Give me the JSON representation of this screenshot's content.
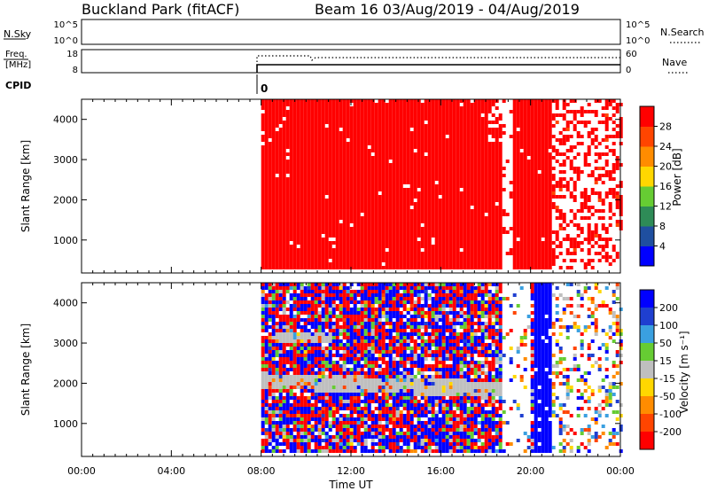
{
  "header": {
    "station": "Buckland Park (fitACF)",
    "beam_info": "Beam 16 03/Aug/2019 - 04/Aug/2019"
  },
  "noise_panel": {
    "left_label": "N.Sky",
    "left_ticks": [
      "10^5",
      "10^0"
    ],
    "right_ticks": [
      "10^5",
      "10^0"
    ],
    "right_label": "N.Search"
  },
  "freq_panel": {
    "left_label_top": "Freq.",
    "left_label_bottom": "[MHz]",
    "left_ticks": [
      "18",
      "8"
    ],
    "right_ticks": [
      "60",
      "0"
    ],
    "right_label": "Nave"
  },
  "cpid": {
    "label": "CPID",
    "value": "0"
  },
  "colors": {
    "power_red": "#ff0000",
    "gs_grey": "#bfbfbf",
    "vel_blue": "#0000ff"
  },
  "chart_data": [
    {
      "type": "heatmap",
      "name": "power",
      "ylabel": "Slant Range [km]",
      "xlabel": "Time UT",
      "x_ticks": [
        "00:00",
        "04:00",
        "08:00",
        "12:00",
        "16:00",
        "20:00",
        "00:00"
      ],
      "x_range_hours": [
        0,
        24
      ],
      "y_ticks": [
        1000,
        2000,
        3000,
        4000
      ],
      "y_range_km": [
        180,
        4500
      ],
      "data_start_hour": 8.0,
      "data_gap_hours": [
        [
          18.6,
          20.0
        ]
      ],
      "colorbar": {
        "label": "Power [dB]",
        "ticks": [
          "4",
          "8",
          "12",
          "16",
          "20",
          "24",
          "28"
        ],
        "colors": [
          "#0000ff",
          "#1f4fa0",
          "#2e8b57",
          "#66cc33",
          "#ffd700",
          "#ff8c00",
          "#ff4500",
          "#ff0000"
        ]
      }
    },
    {
      "type": "heatmap",
      "name": "velocity",
      "ylabel": "Slant Range [km]",
      "xlabel": "Time UT",
      "x_ticks": [
        "00:00",
        "04:00",
        "08:00",
        "12:00",
        "16:00",
        "20:00",
        "00:00"
      ],
      "x_range_hours": [
        0,
        24
      ],
      "y_ticks": [
        1000,
        2000,
        3000,
        4000
      ],
      "y_range_km": [
        180,
        4500
      ],
      "data_start_hour": 8.0,
      "colorbar": {
        "label": "Velocity [m s⁻¹]",
        "ticks": [
          "200",
          "100",
          "50",
          "15",
          "-15",
          "-50",
          "-100",
          "-200"
        ],
        "colors": [
          "#0000ff",
          "#1f3fd0",
          "#3aa0e0",
          "#66cc33",
          "#bfbfbf",
          "#ffd700",
          "#ff8c00",
          "#ff4500",
          "#ff0000"
        ]
      }
    }
  ]
}
